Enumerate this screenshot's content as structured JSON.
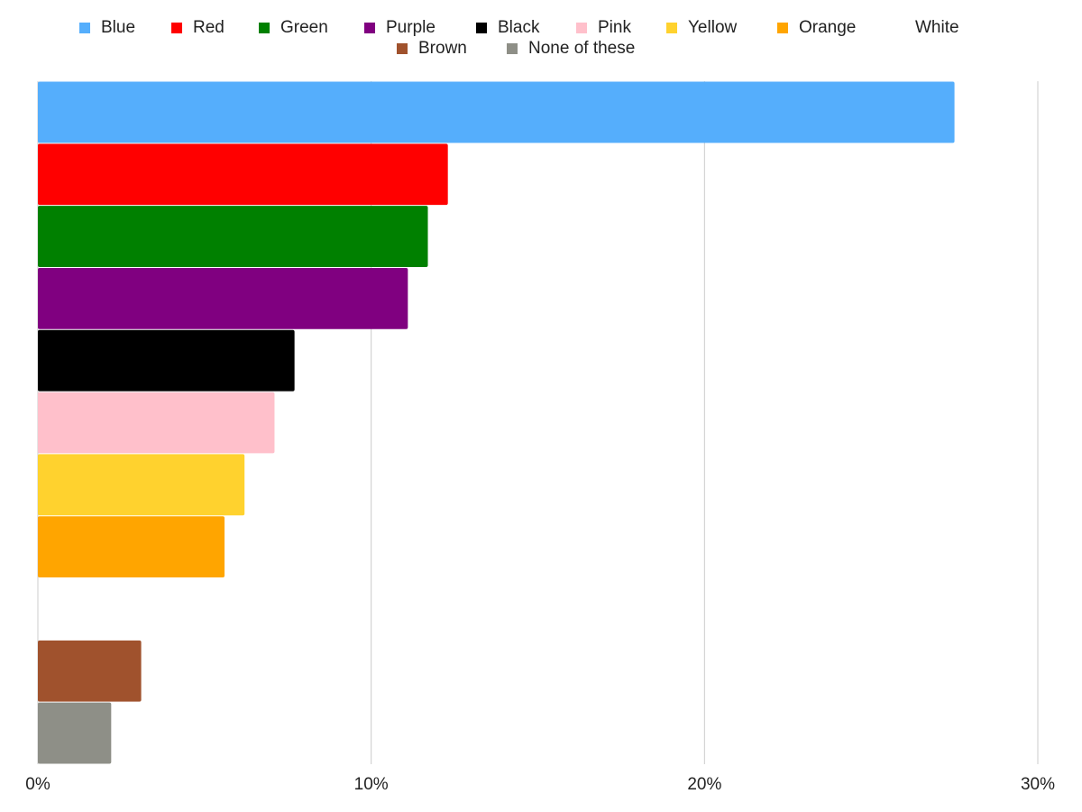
{
  "chart_data": {
    "type": "bar",
    "orientation": "horizontal",
    "series": [
      {
        "name": "Blue",
        "color": "#55aefc",
        "values": [
          27.5
        ]
      },
      {
        "name": "Red",
        "color": "#ff0000",
        "values": [
          12.3
        ]
      },
      {
        "name": "Green",
        "color": "#008000",
        "values": [
          11.7
        ]
      },
      {
        "name": "Purple",
        "color": "#800080",
        "values": [
          11.1
        ]
      },
      {
        "name": "Black",
        "color": "#000000",
        "values": [
          7.7
        ]
      },
      {
        "name": "Pink",
        "color": "#ffc0cb",
        "values": [
          7.1
        ]
      },
      {
        "name": "Yellow",
        "color": "#ffd22e",
        "values": [
          6.2
        ]
      },
      {
        "name": "Orange",
        "color": "#ffa500",
        "values": [
          5.6
        ]
      },
      {
        "name": "White",
        "color": "#ffffff",
        "values": [
          0
        ]
      },
      {
        "name": "Brown",
        "color": "#a0522d",
        "values": [
          3.1
        ]
      },
      {
        "name": "None of these",
        "color": "#8e8f87",
        "values": [
          2.2
        ]
      }
    ],
    "xlim": [
      0,
      30
    ],
    "xticks": [
      {
        "value": 0,
        "label": "0%"
      },
      {
        "value": 10,
        "label": "10%"
      },
      {
        "value": 20,
        "label": "20%"
      },
      {
        "value": 30,
        "label": "30%"
      }
    ],
    "grid": true,
    "legend": "top"
  }
}
